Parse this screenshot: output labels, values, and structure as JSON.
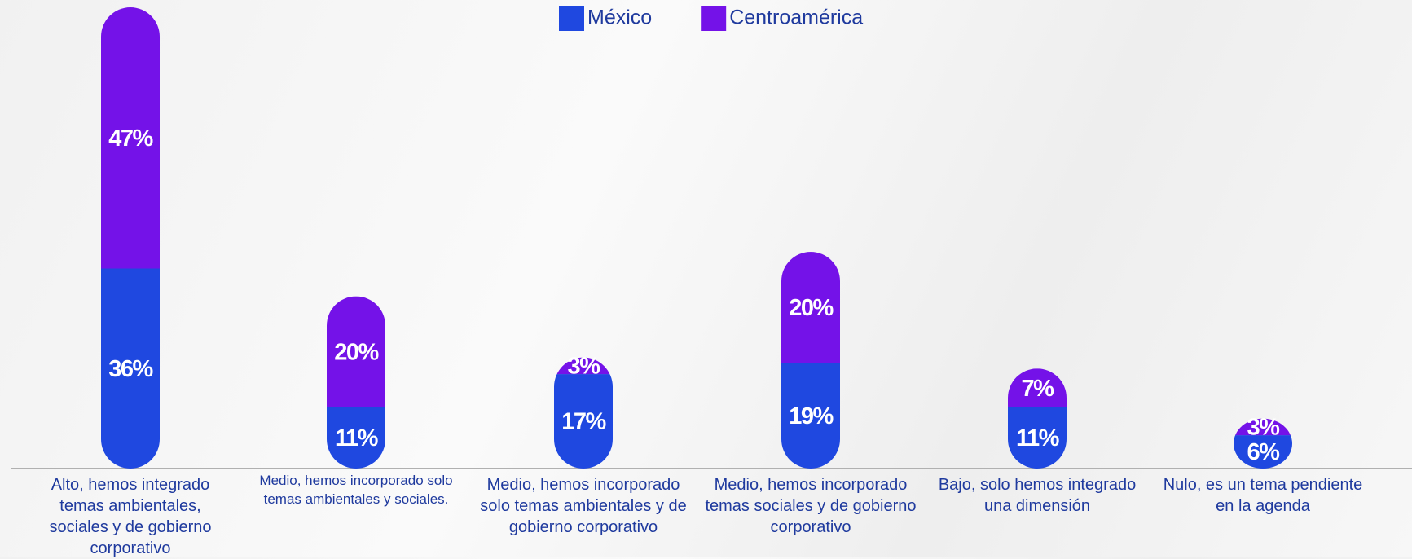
{
  "chart_data": {
    "type": "stacked-bar",
    "categories": [
      "Alto, hemos integrado temas ambientales, sociales y de gobierno corporativo",
      "Medio, hemos incorporado solo temas ambientales y sociales.",
      "Medio, hemos incorporado solo temas ambientales y de gobierno corporativo",
      "Medio, hemos incorporado temas sociales y de gobierno corporativo",
      "Bajo, solo hemos integrado una dimensión",
      "Nulo, es un tema pendiente en la agenda"
    ],
    "series": [
      {
        "name": "México",
        "color": "#1f48e0",
        "values": [
          36,
          11,
          17,
          19,
          11,
          6
        ],
        "value_labels": [
          "36%",
          "11%",
          "17%",
          "19%",
          "11%",
          "6%"
        ]
      },
      {
        "name": "Centroamérica",
        "color": "#7412e8",
        "values": [
          47,
          20,
          3,
          20,
          7,
          3
        ],
        "value_labels": [
          "47%",
          "20%",
          "3%",
          "20%",
          "7%",
          "3%"
        ]
      }
    ],
    "legend": "top"
  }
}
